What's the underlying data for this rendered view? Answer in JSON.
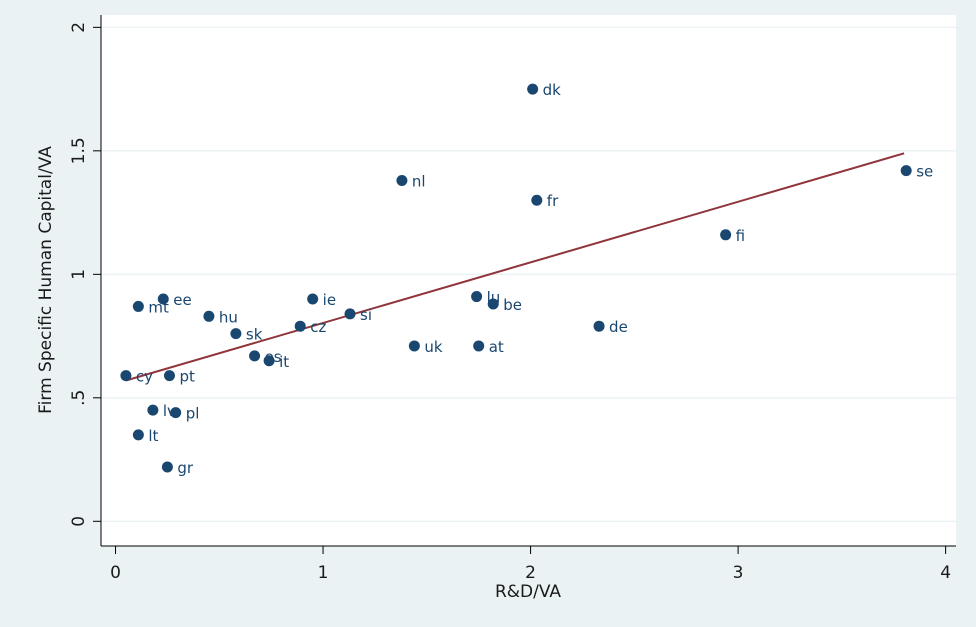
{
  "chart_data": {
    "type": "scatter",
    "title": "",
    "xlabel": "R&D/VA",
    "ylabel": "Firm Specific Human Capital/VA",
    "xlim": [
      -0.07,
      4.05
    ],
    "ylim": [
      -0.1,
      2.05
    ],
    "xticks": [
      {
        "v": 0,
        "label": "0"
      },
      {
        "v": 1,
        "label": "1"
      },
      {
        "v": 2,
        "label": "2"
      },
      {
        "v": 3,
        "label": "3"
      },
      {
        "v": 4,
        "label": "4"
      }
    ],
    "yticks": [
      {
        "v": 0,
        "label": "0"
      },
      {
        "v": 0.5,
        "label": ".5"
      },
      {
        "v": 1,
        "label": "1"
      },
      {
        "v": 1.5,
        "label": "1.5"
      },
      {
        "v": 2,
        "label": "2"
      }
    ],
    "grid": true,
    "colors": {
      "background": "#eaf2f3",
      "plot_area": "#ffffff",
      "points": "#1a476f",
      "labels": "#1a476f",
      "fit_line": "#90353b",
      "grid": "#eaf2f3"
    },
    "points": [
      {
        "label": "dk",
        "x": 2.01,
        "y": 1.75
      },
      {
        "label": "nl",
        "x": 1.38,
        "y": 1.38
      },
      {
        "label": "fr",
        "x": 2.03,
        "y": 1.3
      },
      {
        "label": "se",
        "x": 3.81,
        "y": 1.42
      },
      {
        "label": "fi",
        "x": 2.94,
        "y": 1.16
      },
      {
        "label": "ee",
        "x": 0.23,
        "y": 0.9
      },
      {
        "label": "mt",
        "x": 0.11,
        "y": 0.87
      },
      {
        "label": "hu",
        "x": 0.45,
        "y": 0.83
      },
      {
        "label": "ie",
        "x": 0.95,
        "y": 0.9
      },
      {
        "label": "si",
        "x": 1.13,
        "y": 0.84
      },
      {
        "label": "cz",
        "x": 0.89,
        "y": 0.79
      },
      {
        "label": "sk",
        "x": 0.58,
        "y": 0.76
      },
      {
        "label": "es",
        "x": 0.67,
        "y": 0.67
      },
      {
        "label": "it",
        "x": 0.74,
        "y": 0.65
      },
      {
        "label": "lu",
        "x": 1.74,
        "y": 0.91
      },
      {
        "label": "be",
        "x": 1.82,
        "y": 0.88
      },
      {
        "label": "de",
        "x": 2.33,
        "y": 0.79
      },
      {
        "label": "uk",
        "x": 1.44,
        "y": 0.71
      },
      {
        "label": "at",
        "x": 1.75,
        "y": 0.71
      },
      {
        "label": "cy",
        "x": 0.05,
        "y": 0.59
      },
      {
        "label": "pt",
        "x": 0.26,
        "y": 0.59
      },
      {
        "label": "lv",
        "x": 0.18,
        "y": 0.45
      },
      {
        "label": "pl",
        "x": 0.29,
        "y": 0.44
      },
      {
        "label": "lt",
        "x": 0.11,
        "y": 0.35
      },
      {
        "label": "gr",
        "x": 0.25,
        "y": 0.22
      }
    ],
    "fit_line": {
      "x": [
        0.05,
        3.8
      ],
      "y": [
        0.57,
        1.49
      ]
    }
  }
}
